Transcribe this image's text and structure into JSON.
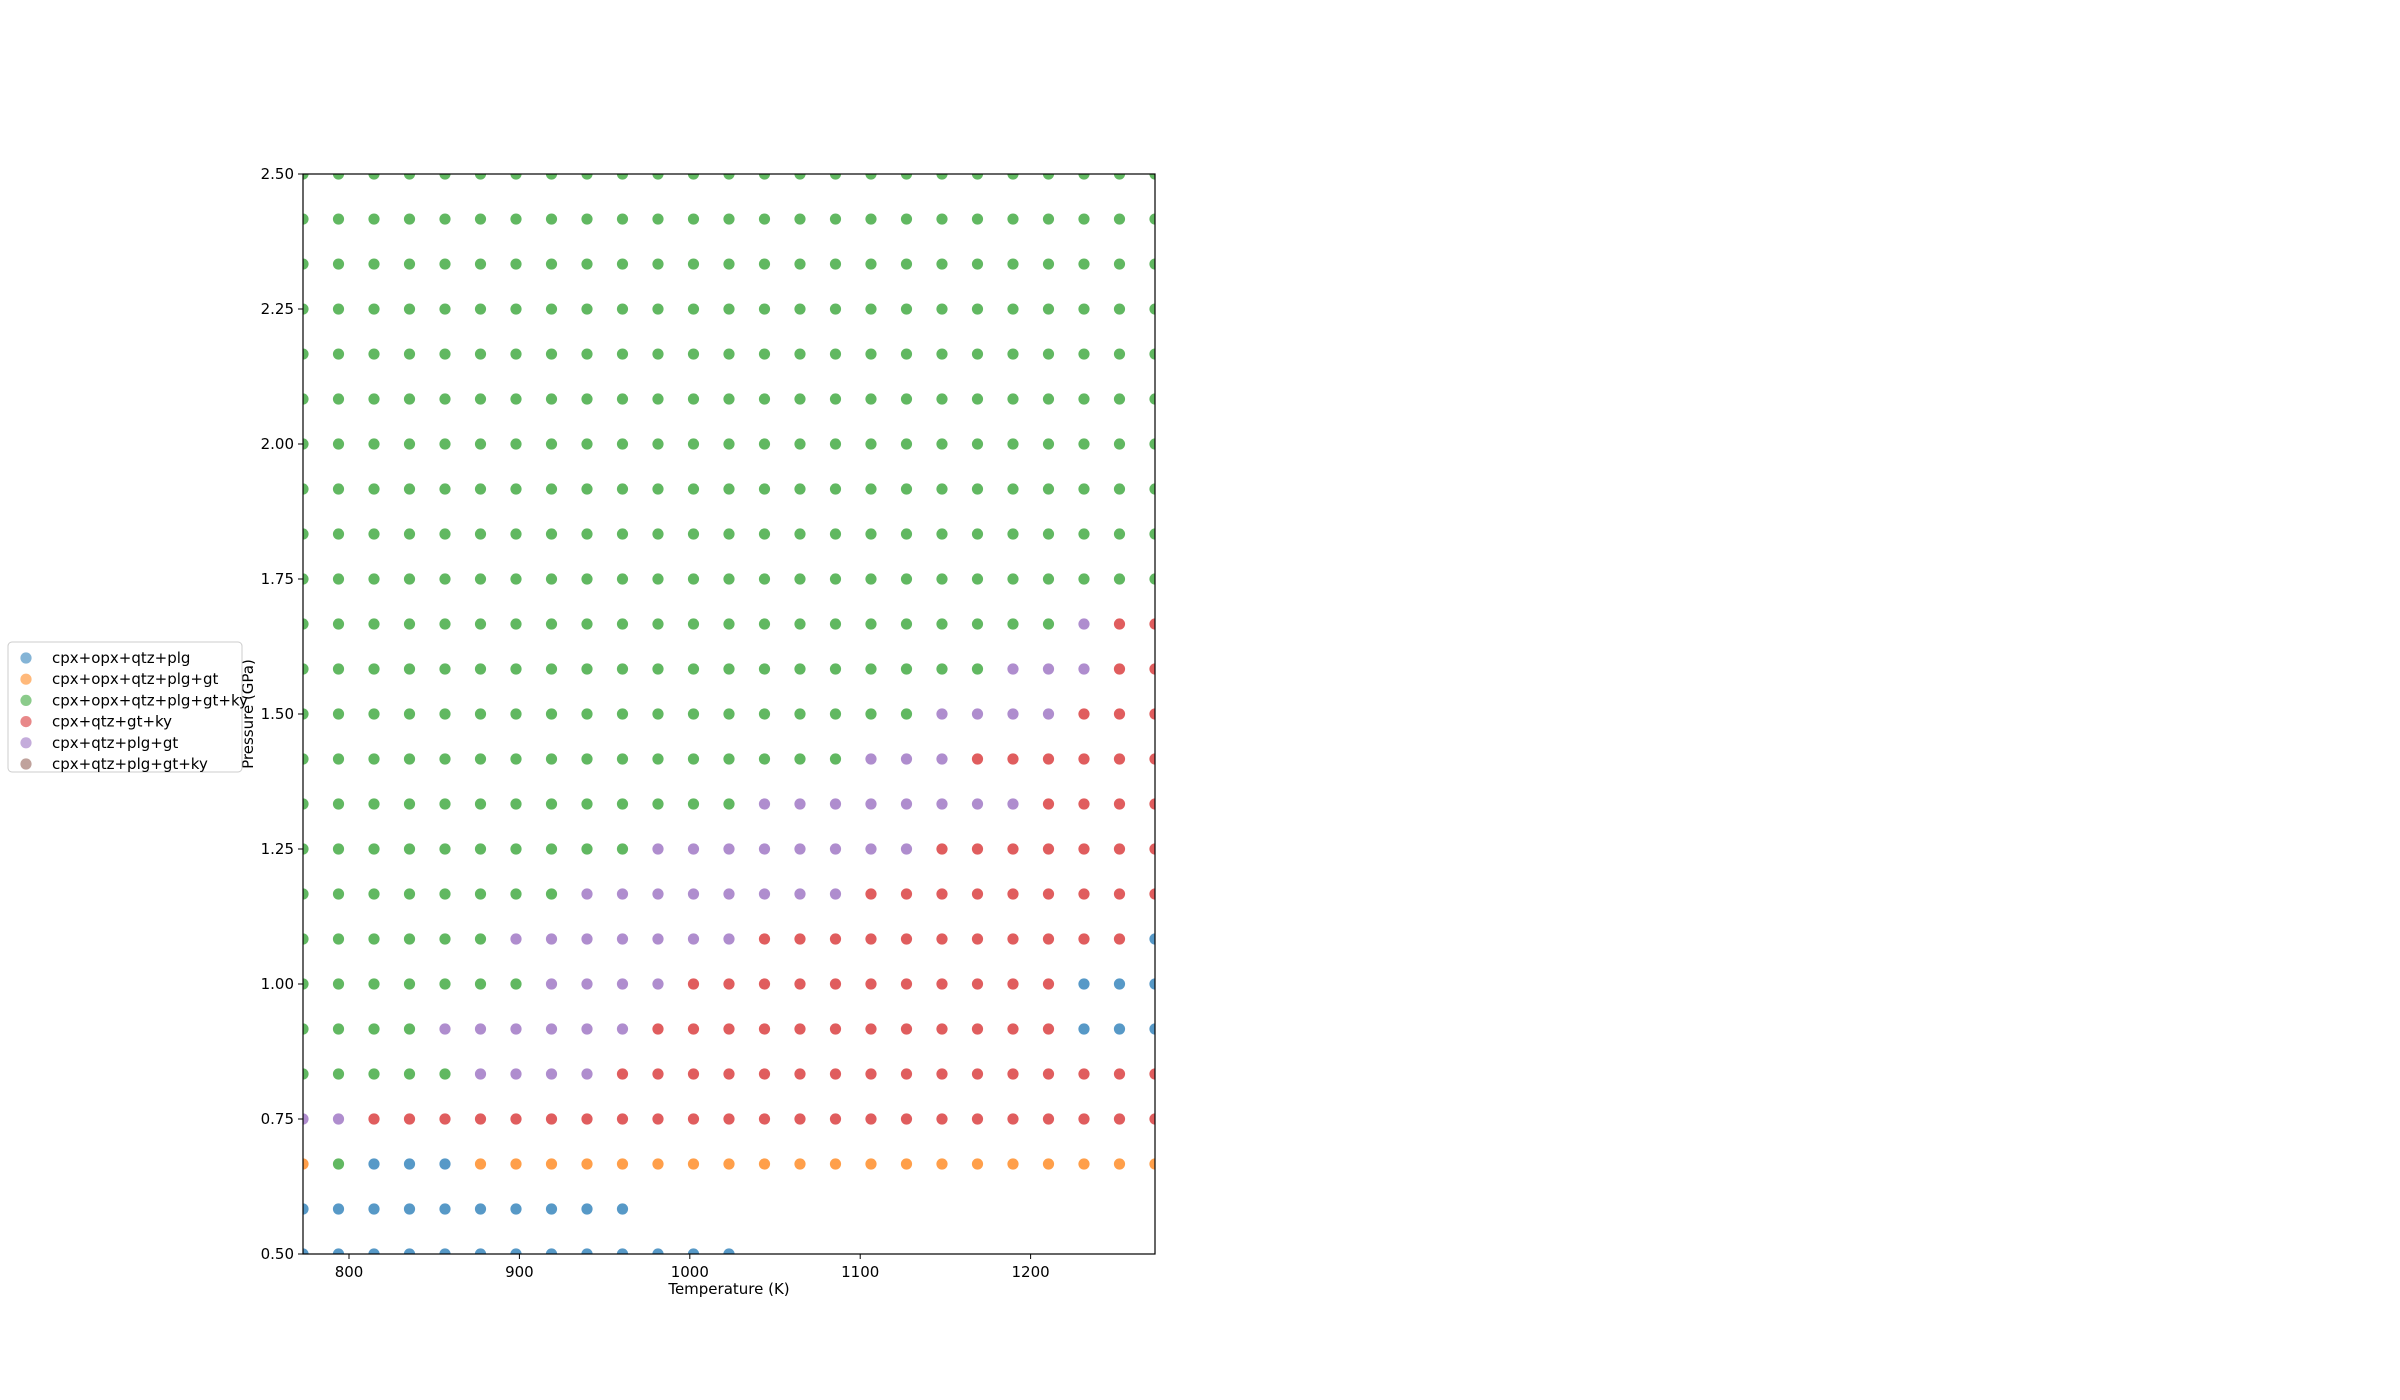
{
  "chart_data": {
    "type": "scatter",
    "title": "",
    "xlabel": "Temperature (K)",
    "ylabel": "Pressure (GPa)",
    "xlim": [
      773,
      1273
    ],
    "ylim": [
      0.5,
      2.5
    ],
    "xticks": [
      800,
      900,
      1000,
      1100,
      1200
    ],
    "yticks": [
      0.5,
      0.75,
      1.0,
      1.25,
      1.5,
      1.75,
      2.0,
      2.25,
      2.5
    ],
    "ytick_labels": [
      "0.50",
      "0.75",
      "1.00",
      "1.25",
      "1.50",
      "1.75",
      "2.00",
      "2.25",
      "2.50"
    ],
    "grid": false,
    "legend_position": "outside-left",
    "grid_points": {
      "x_start": 773,
      "x_step": 20.833,
      "x_count": 25,
      "y_start": 0.5,
      "y_step": 0.08333,
      "y_count": 25
    },
    "series": [
      {
        "name": "cpx+opx+qtz+plg",
        "color": "#1f77b4"
      },
      {
        "name": "cpx+opx+qtz+plg+gt",
        "color": "#ff7f0e"
      },
      {
        "name": "cpx+opx+qtz+plg+gt+ky",
        "color": "#2ca02c"
      },
      {
        "name": "cpx+qtz+gt+ky",
        "color": "#d62728"
      },
      {
        "name": "cpx+qtz+plg+gt",
        "color": "#9467bd"
      },
      {
        "name": "cpx+qtz+plg+gt+ky",
        "color": "#8c564b"
      }
    ],
    "phase_rows": [
      "1111111111111000000000000",
      "1111111111000000000000000",
      "2311122222222222222222222",
      "5544444444444444444444444",
      "3333355554444444444444444",
      "3333555555444444444444111",
      "3333333555544444444444111",
      "3333335555555444444444441",
      "3333333355555555444444444",
      "3333333333555555554444444",
      "3333333333333555555554444",
      "3333333333333333555444444",
      "3333333333333333335555444",
      "3333333333333333333355544",
      "3333333333333333333333544",
      "3333333333333333333333333",
      "3333333333333333333333333",
      "3333333333333333333333333",
      "3333333333333333333333333",
      "3333333333333333333333333",
      "3333333333333333333333333",
      "3333333333333333333333333",
      "3333333333333333333333333",
      "3333333333333333333333333",
      "3333333333333333333333333"
    ]
  }
}
